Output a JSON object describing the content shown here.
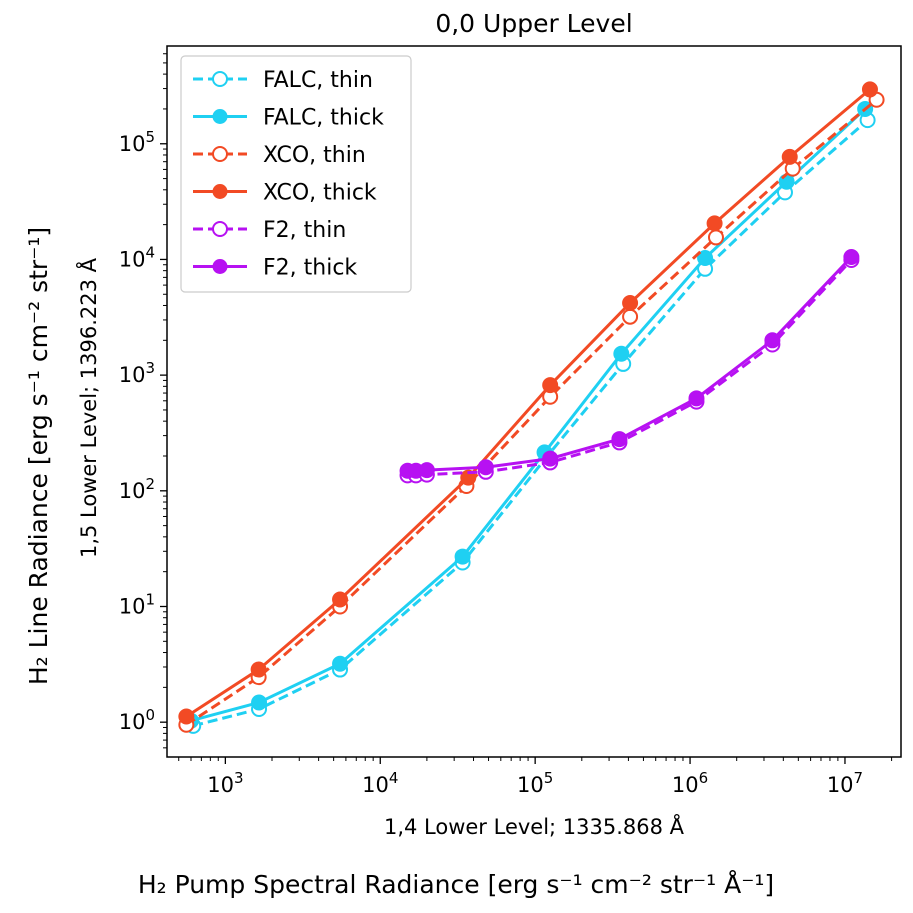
{
  "chart_data": {
    "type": "line",
    "title": "0,0 Upper Level",
    "xlabel_outer": "H₂ Pump Spectral Radiance [erg s⁻¹ cm⁻² str⁻¹ Å⁻¹]",
    "xlabel_inner": "1,4 Lower Level; 1335.868 Å",
    "ylabel_outer": "H₂ Line Radiance [erg s⁻¹ cm⁻² str⁻¹]",
    "ylabel_inner": "1,5 Lower Level; 1396.223 Å",
    "xscale": "log",
    "yscale": "log",
    "xlim": [
      420,
      23000000
    ],
    "ylim": [
      0.5,
      700000
    ],
    "xticks": [
      {
        "value": 1000,
        "base": "10",
        "exp": "3"
      },
      {
        "value": 10000,
        "base": "10",
        "exp": "4"
      },
      {
        "value": 100000,
        "base": "10",
        "exp": "5"
      },
      {
        "value": 1000000,
        "base": "10",
        "exp": "6"
      },
      {
        "value": 10000000,
        "base": "10",
        "exp": "7"
      }
    ],
    "yticks": [
      {
        "value": 1,
        "base": "10",
        "exp": "0"
      },
      {
        "value": 10,
        "base": "10",
        "exp": "1"
      },
      {
        "value": 100,
        "base": "10",
        "exp": "2"
      },
      {
        "value": 1000,
        "base": "10",
        "exp": "3"
      },
      {
        "value": 10000,
        "base": "10",
        "exp": "4"
      },
      {
        "value": 100000,
        "base": "10",
        "exp": "5"
      }
    ],
    "legend_position": "upper-left",
    "series": [
      {
        "name": "FALC, thin",
        "color": "#1fd0f2",
        "style": "dashed",
        "marker": "open-circle",
        "x": [
          620,
          1650,
          5500,
          34000,
          120000,
          370000,
          1250000,
          4100000,
          14000000
        ],
        "y": [
          0.93,
          1.3,
          2.85,
          24,
          200,
          1250,
          8300,
          38000,
          160000
        ]
      },
      {
        "name": "FALC, thick",
        "color": "#1fd0f2",
        "style": "solid",
        "marker": "filled-circle",
        "x": [
          600,
          1650,
          5500,
          34000,
          115000,
          360000,
          1250000,
          4200000,
          13500000
        ],
        "y": [
          1.03,
          1.48,
          3.2,
          27,
          215,
          1530,
          10300,
          47000,
          200000
        ]
      },
      {
        "name": "XCO, thin",
        "color": "#f24a24",
        "style": "dashed",
        "marker": "open-circle",
        "x": [
          560,
          1640,
          5500,
          36000,
          125000,
          410000,
          1470000,
          4600000,
          16000000
        ],
        "y": [
          0.95,
          2.45,
          10,
          110,
          650,
          3200,
          15500,
          61000,
          240000
        ]
      },
      {
        "name": "XCO, thick",
        "color": "#f24a24",
        "style": "solid",
        "marker": "filled-circle",
        "x": [
          560,
          1640,
          5500,
          37000,
          125000,
          410000,
          1440000,
          4400000,
          14500000
        ],
        "y": [
          1.12,
          2.85,
          11.5,
          130,
          820,
          4200,
          20500,
          77000,
          295000
        ]
      },
      {
        "name": "F2, thin",
        "color": "#b711f2",
        "style": "dashed",
        "marker": "open-circle",
        "x": [
          15000,
          17000,
          20000,
          48000,
          125000,
          350000,
          1100000,
          3400000,
          11000000
        ],
        "y": [
          136,
          136,
          138,
          146,
          176,
          262,
          590,
          1840,
          9900
        ]
      },
      {
        "name": "F2, thick",
        "color": "#b711f2",
        "style": "solid",
        "marker": "filled-circle",
        "x": [
          15000,
          17000,
          20000,
          48000,
          125000,
          350000,
          1100000,
          3400000,
          11000000
        ],
        "y": [
          149,
          149,
          151,
          160,
          190,
          280,
          630,
          2000,
          10500
        ]
      }
    ]
  }
}
